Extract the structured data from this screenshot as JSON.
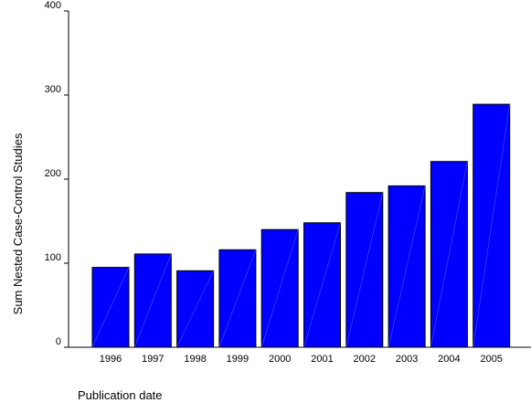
{
  "chart_data": {
    "type": "bar",
    "title": "",
    "xlabel": "Publication date",
    "ylabel": "Sum Nested Case-Control Studies",
    "categories": [
      "1996",
      "1997",
      "1998",
      "1999",
      "2000",
      "2001",
      "2002",
      "2003",
      "2004",
      "2005"
    ],
    "values": [
      95,
      111,
      91,
      116,
      140,
      148,
      184,
      192,
      221,
      289
    ],
    "ylim": [
      0,
      400
    ],
    "yticks": [
      "0",
      "100",
      "200",
      "300",
      "400"
    ],
    "grid": false,
    "bar_color": "#0000ff",
    "bar_edge_color": "#000000"
  }
}
